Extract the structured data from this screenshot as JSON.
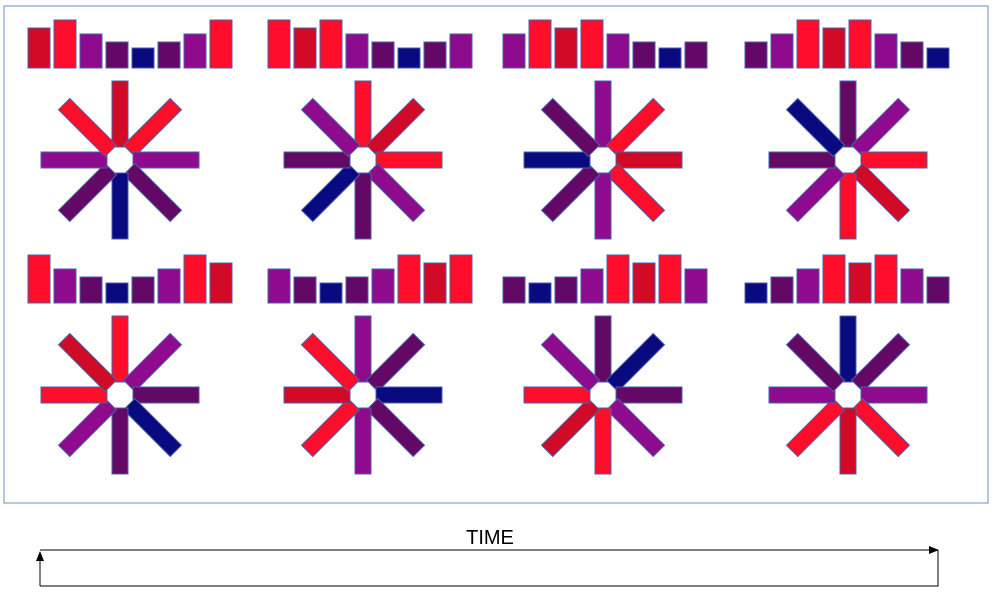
{
  "colors": {
    "levels": [
      "#0a0a80",
      "#630864",
      "#8e0b8e",
      "#d10a28",
      "#fe0e2a"
    ],
    "frame_stroke": "#6f8fc0",
    "bar_stroke": "#4a5fa8",
    "arrow": "#000000"
  },
  "time_label": "TIME",
  "panels": [
    {
      "id": "panel-1",
      "levels": [
        3,
        4,
        2,
        1,
        0,
        1,
        2,
        4
      ]
    },
    {
      "id": "panel-2",
      "levels": [
        4,
        3,
        4,
        2,
        1,
        0,
        1,
        2
      ]
    },
    {
      "id": "panel-3",
      "levels": [
        2,
        4,
        3,
        4,
        2,
        1,
        0,
        1
      ]
    },
    {
      "id": "panel-4",
      "levels": [
        1,
        2,
        4,
        3,
        4,
        2,
        1,
        0
      ]
    },
    {
      "id": "panel-5",
      "levels": [
        4,
        2,
        1,
        0,
        1,
        2,
        4,
        3
      ]
    },
    {
      "id": "panel-6",
      "levels": [
        2,
        1,
        0,
        1,
        2,
        4,
        3,
        4
      ]
    },
    {
      "id": "panel-7",
      "levels": [
        1,
        0,
        1,
        2,
        4,
        3,
        4,
        2
      ]
    },
    {
      "id": "panel-8",
      "levels": [
        0,
        1,
        2,
        4,
        3,
        4,
        2,
        1
      ]
    }
  ]
}
